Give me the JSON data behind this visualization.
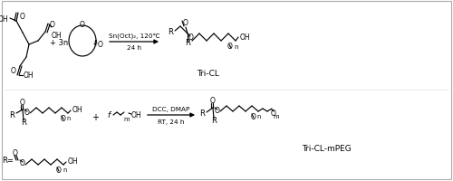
{
  "background_color": "#ffffff",
  "fig_width": 5.0,
  "fig_height": 2.01,
  "dpi": 100,
  "arrow1_label_top": "Sn(Oct)₂, 120℃",
  "arrow1_label_bot": "24 h",
  "arrow2_label_top": "DCC, DMAP",
  "arrow2_label_bot": "RT, 24 h",
  "label_tricl": "Tri-CL",
  "label_triclmpeg": "Tri-CL-mPEG",
  "plus3n": "+ 3n",
  "plus": "+",
  "r_eq": "R=",
  "border_color": "#aaaaaa"
}
